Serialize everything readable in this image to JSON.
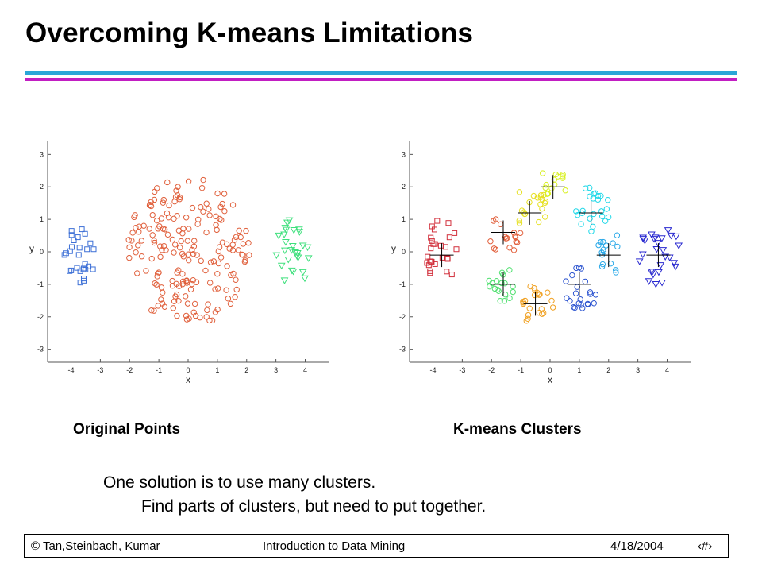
{
  "slide": {
    "title": "Overcoming K-means Limitations",
    "text1": "One solution is to use many clusters.",
    "text2": "Find parts of clusters, but need to put together.",
    "footer_left": "© Tan,Steinbach, Kumar",
    "footer_center": "Introduction to Data Mining",
    "footer_date": "4/18/2004",
    "footer_page": "‹#›",
    "accent_colors": [
      "#2aa6d8",
      "#c21ec2"
    ]
  },
  "chart_data": [
    {
      "type": "scatter",
      "caption": "Original Points",
      "xlabel": "x",
      "ylabel": "y",
      "xlim": [
        -4.8,
        4.8
      ],
      "ylim": [
        -3.4,
        3.4
      ],
      "xticks": [
        -4,
        -3,
        -2,
        -1,
        0,
        1,
        2,
        3,
        4
      ],
      "yticks": [
        -3,
        -2,
        -1,
        0,
        1,
        2,
        3
      ],
      "grid": false,
      "groups": [
        {
          "marker": "square",
          "color": "#3c6fd6",
          "cx": -3.7,
          "cy": 0.0,
          "rx": 0.55,
          "ry": 1.0,
          "count": 28
        },
        {
          "marker": "circle",
          "color": "#e0603c",
          "cx": 0.0,
          "cy": 0.0,
          "rx": 2.1,
          "ry": 2.3,
          "count": 190
        },
        {
          "marker": "triangle",
          "color": "#3ee07c",
          "cx": 3.6,
          "cy": 0.0,
          "rx": 0.75,
          "ry": 1.0,
          "count": 28
        }
      ]
    },
    {
      "type": "scatter",
      "caption": "K-means Clusters",
      "xlabel": "x",
      "ylabel": "y",
      "xlim": [
        -4.8,
        4.8
      ],
      "ylim": [
        -3.4,
        3.4
      ],
      "xticks": [
        -4,
        -3,
        -2,
        -1,
        0,
        1,
        2,
        3,
        4
      ],
      "yticks": [
        -3,
        -2,
        -1,
        0,
        1,
        2,
        3
      ],
      "grid": false,
      "groups": [
        {
          "marker": "square",
          "color": "#d2303c",
          "cx": -3.7,
          "cy": 0.0,
          "rx": 0.55,
          "ry": 1.0,
          "count": 28
        },
        {
          "marker": "circle",
          "color": "#e2603c",
          "cx": -1.6,
          "cy": 0.5,
          "rx": 0.6,
          "ry": 0.6,
          "count": 18
        },
        {
          "marker": "circle",
          "color": "#e6e020",
          "cx": -0.7,
          "cy": 1.4,
          "rx": 0.6,
          "ry": 0.7,
          "count": 20
        },
        {
          "marker": "circle",
          "color": "#d8f020",
          "cx": 0.1,
          "cy": 2.1,
          "rx": 0.6,
          "ry": 0.4,
          "count": 14
        },
        {
          "marker": "circle",
          "color": "#20d8e8",
          "cx": 1.4,
          "cy": 1.3,
          "rx": 0.65,
          "ry": 0.7,
          "count": 24
        },
        {
          "marker": "circle",
          "color": "#28a8e8",
          "cx": 2.0,
          "cy": 0.0,
          "rx": 0.45,
          "ry": 0.8,
          "count": 16
        },
        {
          "marker": "circle",
          "color": "#2c54d0",
          "cx": 1.0,
          "cy": -1.1,
          "rx": 0.7,
          "ry": 0.7,
          "count": 22
        },
        {
          "marker": "circle",
          "color": "#f0a020",
          "cx": -0.5,
          "cy": -1.6,
          "rx": 0.7,
          "ry": 0.6,
          "count": 22
        },
        {
          "marker": "circle",
          "color": "#50e070",
          "cx": -1.6,
          "cy": -1.0,
          "rx": 0.5,
          "ry": 0.6,
          "count": 18
        },
        {
          "marker": "triangle",
          "color": "#2a2ad0",
          "cx": 3.7,
          "cy": 0.0,
          "rx": 0.75,
          "ry": 1.0,
          "count": 28
        }
      ],
      "centroids": [
        {
          "x": -3.7,
          "y": -0.1
        },
        {
          "x": -1.6,
          "y": 0.6
        },
        {
          "x": -0.7,
          "y": 1.2
        },
        {
          "x": 0.1,
          "y": 2.0
        },
        {
          "x": 1.4,
          "y": 1.2
        },
        {
          "x": 2.0,
          "y": -0.1
        },
        {
          "x": 1.0,
          "y": -1.0
        },
        {
          "x": -0.5,
          "y": -1.6
        },
        {
          "x": -1.6,
          "y": -1.0
        },
        {
          "x": 3.7,
          "y": -0.1
        }
      ]
    }
  ]
}
